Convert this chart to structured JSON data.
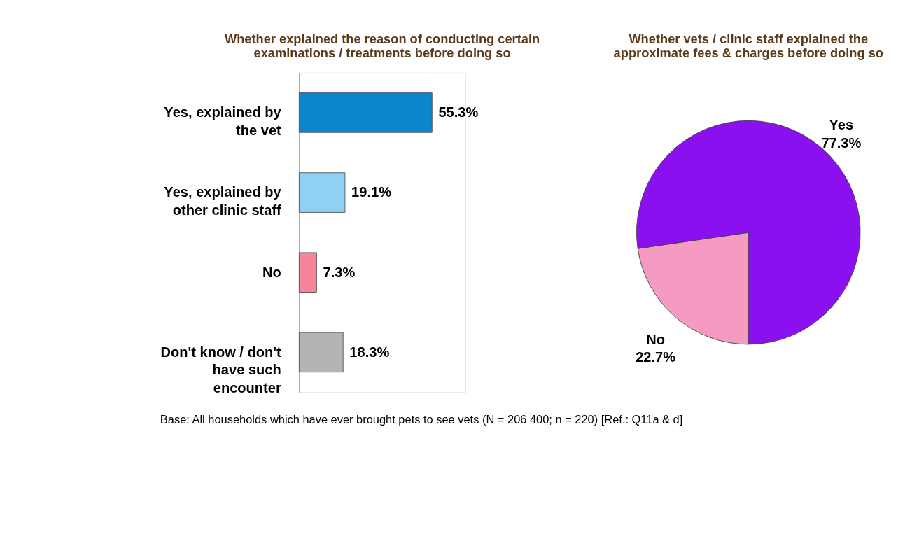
{
  "chart_data": [
    {
      "type": "bar",
      "orientation": "horizontal",
      "title": "Whether explained the reason of conducting certain examinations / treatments before doing so",
      "categories": [
        "Yes, explained by the vet",
        "Yes, explained by other clinic staff",
        "No",
        "Don't know / don't have such encounter"
      ],
      "values": [
        55.3,
        19.1,
        7.3,
        18.3
      ],
      "colors": [
        "#0a86cf",
        "#8fd0f4",
        "#f7859a",
        "#b4b4b4"
      ],
      "value_labels": [
        "55.3%",
        "19.1%",
        "7.3%",
        "18.3%"
      ],
      "annotations": [
        "Base: All households which have ever brought pets to see vets (N = 206 400; n = 220) [Ref.: Q11a & d]"
      ]
    },
    {
      "type": "pie",
      "title": "Whether vets / clinic staff explained the approximate fees & charges before doing so",
      "categories": [
        "No",
        "Yes"
      ],
      "values": [
        22.7,
        77.3
      ],
      "colors": [
        "#f59ac0",
        "#8a10f0"
      ],
      "value_labels": [
        "22.7%",
        "77.3%"
      ]
    }
  ]
}
